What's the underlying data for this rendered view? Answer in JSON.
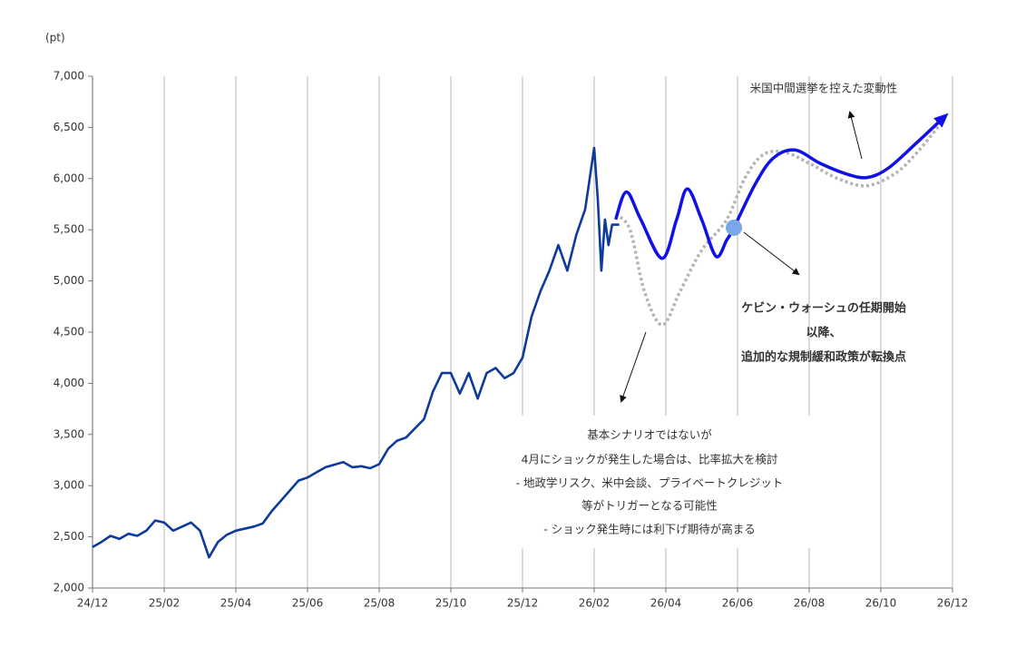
{
  "chart_data": {
    "type": "line",
    "y_unit": "(pt)",
    "xlim": [
      0,
      24
    ],
    "xticks": [
      {
        "value": 0,
        "label": "24/12"
      },
      {
        "value": 2,
        "label": "25/02"
      },
      {
        "value": 4,
        "label": "25/04"
      },
      {
        "value": 6,
        "label": "25/06"
      },
      {
        "value": 8,
        "label": "25/08"
      },
      {
        "value": 10,
        "label": "25/10"
      },
      {
        "value": 12,
        "label": "25/12"
      },
      {
        "value": 14,
        "label": "26/02"
      },
      {
        "value": 16,
        "label": "26/04"
      },
      {
        "value": 18,
        "label": "26/06"
      },
      {
        "value": 20,
        "label": "26/08"
      },
      {
        "value": 22,
        "label": "26/10"
      },
      {
        "value": 24,
        "label": "26/12"
      }
    ],
    "ylim": [
      2000,
      7000
    ],
    "yticks": [
      {
        "value": 2000,
        "label": "2,000"
      },
      {
        "value": 2500,
        "label": "2,500"
      },
      {
        "value": 3000,
        "label": "3,000"
      },
      {
        "value": 3500,
        "label": "3,500"
      },
      {
        "value": 4000,
        "label": "4,000"
      },
      {
        "value": 4500,
        "label": "4,500"
      },
      {
        "value": 5000,
        "label": "5,000"
      },
      {
        "value": 5500,
        "label": "5,500"
      },
      {
        "value": 6000,
        "label": "6,000"
      },
      {
        "value": 6500,
        "label": "6,500"
      },
      {
        "value": 7000,
        "label": "7,000"
      }
    ],
    "x_grid": true,
    "series": [
      {
        "color": "#0d3a9c",
        "line_style": "solid",
        "smooth": false,
        "end_arrow": false,
        "x": [
          0,
          0.25,
          0.5,
          0.75,
          1,
          1.25,
          1.5,
          1.75,
          2,
          2.25,
          2.5,
          2.75,
          3,
          3.25,
          3.5,
          3.75,
          4,
          4.5,
          4.75,
          5,
          5.5,
          5.75,
          6,
          6.25,
          6.5,
          7,
          7.25,
          7.5,
          7.75,
          8,
          8.25,
          8.5,
          8.75,
          9,
          9.25,
          9.5,
          9.75,
          10,
          10.25,
          10.5,
          10.75,
          11,
          11.25,
          11.5,
          11.75,
          12,
          12.25,
          12.5,
          12.75,
          13,
          13.25,
          13.5,
          13.75,
          14,
          14.1,
          14.2,
          14.3,
          14.4,
          14.5,
          14.7
        ],
        "values": [
          2400,
          2450,
          2510,
          2480,
          2530,
          2510,
          2560,
          2660,
          2640,
          2560,
          2600,
          2640,
          2560,
          2300,
          2450,
          2520,
          2560,
          2600,
          2630,
          2750,
          2950,
          3050,
          3080,
          3130,
          3180,
          3230,
          3180,
          3190,
          3170,
          3210,
          3360,
          3440,
          3470,
          3560,
          3650,
          3920,
          4100,
          4100,
          3900,
          4100,
          3850,
          4100,
          4150,
          4050,
          4100,
          4250,
          4650,
          4900,
          5100,
          5350,
          5100,
          5450,
          5700,
          6300,
          5800,
          5100,
          5600,
          5350,
          5550,
          5550
        ]
      },
      {
        "color": "#b4b4b4",
        "line_style": "dotted",
        "smooth": true,
        "end_arrow": false,
        "x": [
          14.6,
          15.0,
          15.4,
          15.9,
          16.4,
          17.0,
          17.7,
          18.2,
          18.7,
          19.3,
          20.0,
          20.8,
          21.6,
          22.4,
          23.0,
          23.7
        ],
        "values": [
          5650,
          5500,
          4900,
          4570,
          4900,
          5300,
          5600,
          6000,
          6230,
          6260,
          6150,
          6000,
          5930,
          6050,
          6250,
          6550
        ]
      },
      {
        "color": "#1010e8",
        "line_style": "solid",
        "smooth": true,
        "end_arrow": true,
        "x": [
          14.6,
          14.9,
          15.3,
          15.9,
          16.3,
          16.6,
          17.0,
          17.4,
          17.7,
          17.9,
          18.5,
          19.0,
          19.6,
          20.3,
          21.0,
          21.6,
          22.2,
          23.0,
          23.7
        ],
        "values": [
          5600,
          5870,
          5600,
          5220,
          5600,
          5900,
          5600,
          5240,
          5400,
          5520,
          5950,
          6200,
          6280,
          6150,
          6050,
          6010,
          6100,
          6350,
          6580
        ]
      }
    ],
    "highlight_point": {
      "x": 17.9,
      "y": 5520,
      "color": "#7aa6ea"
    },
    "annotations": {
      "midterm": "米国中間選挙を控えた変動性",
      "warsh": [
        "ケビン・ウォーシュの任期開始",
        "以降、",
        "追加的な規制緩和政策が転換点"
      ],
      "shock": [
        "基本シナリオではないが",
        "4月にショックが発生した場合は、比率拡大を検討",
        "- 地政学リスク、米中会談、プライベートクレジット",
        "等がトリガーとなる可能性",
        "- ショック発生時には利下げ期待が高まる"
      ]
    }
  }
}
